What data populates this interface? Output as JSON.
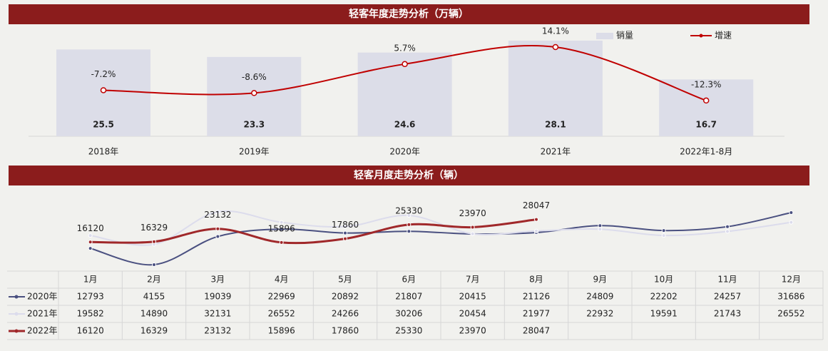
{
  "chart_data": [
    {
      "type": "bar_line",
      "title": "轻客年度走势分析（万辆）",
      "categories": [
        "2018年",
        "2019年",
        "2020年",
        "2021年",
        "2022年1-8月"
      ],
      "series": [
        {
          "name": "销量",
          "type": "bar",
          "color": "#dcdde8",
          "values": [
            25.5,
            23.3,
            24.6,
            28.1,
            16.7
          ]
        },
        {
          "name": "增速",
          "type": "line",
          "color": "#c00000",
          "values": [
            -7.2,
            -8.6,
            5.7,
            14.1,
            -12.3
          ],
          "value_labels": [
            "-7.2%",
            "-8.6%",
            "5.7%",
            "14.1%",
            "-12.3%"
          ]
        }
      ]
    },
    {
      "type": "line",
      "title": "轻客月度走势分析（辆）",
      "categories": [
        "1月",
        "2月",
        "3月",
        "4月",
        "5月",
        "6月",
        "7月",
        "8月",
        "9月",
        "10月",
        "11月",
        "12月"
      ],
      "series": [
        {
          "name": "2020年",
          "color": "#4a5080",
          "values": [
            12793,
            4155,
            19039,
            22969,
            20892,
            21807,
            20415,
            21126,
            24809,
            22202,
            24257,
            31686
          ]
        },
        {
          "name": "2021年",
          "color": "#dcdcec",
          "values": [
            19582,
            14890,
            32131,
            26552,
            24266,
            30206,
            20454,
            21977,
            22932,
            19591,
            21743,
            26552
          ]
        },
        {
          "name": "2022年",
          "color": "#a0282a",
          "values": [
            16120,
            16329,
            23132,
            15896,
            17860,
            25330,
            23970,
            28047,
            null,
            null,
            null,
            null
          ],
          "data_labels": true
        }
      ]
    }
  ]
}
